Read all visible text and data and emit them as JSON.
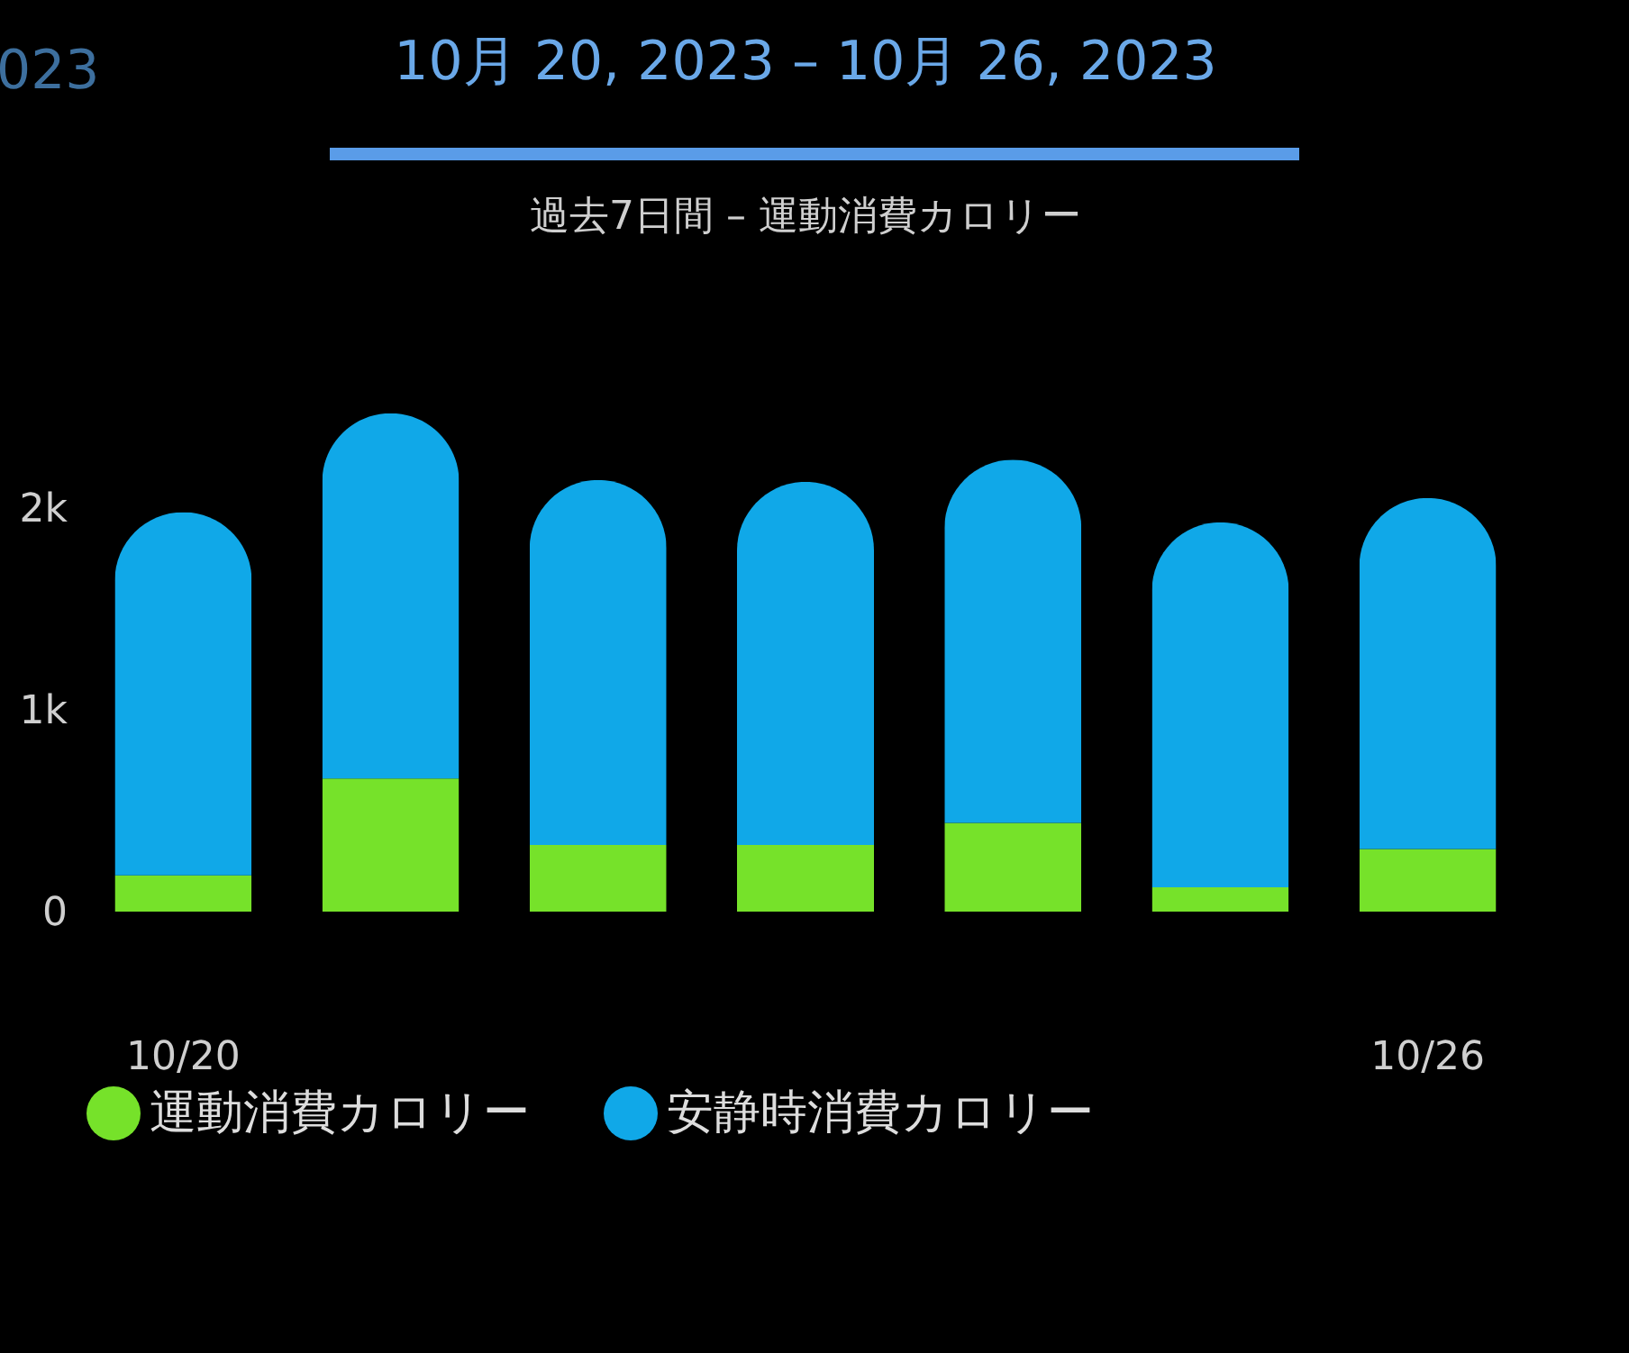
{
  "chart_data": {
    "type": "bar",
    "title": "10月 20, 2023 – 10月 26, 2023",
    "subtitle": "過去7日間 – 運動消費カロリー",
    "annotations": [
      "023"
    ],
    "categories": [
      "10/20",
      null,
      null,
      null,
      null,
      null,
      "10/26"
    ],
    "stacked": true,
    "series": [
      {
        "name": "運動消費カロリー",
        "color": "#76e22a",
        "values": [
          180,
          660,
          330,
          330,
          440,
          120,
          310
        ]
      },
      {
        "name": "安静時消費カロリー",
        "color": "#10a8e8",
        "values": [
          1800,
          1810,
          1810,
          1800,
          1800,
          1810,
          1740
        ]
      }
    ],
    "ylim": [
      0,
      2500
    ],
    "yticks": [
      0,
      {
        "value": 1000,
        "label": "1k"
      },
      {
        "value": 2000,
        "label": "2k"
      }
    ],
    "grid": false,
    "legend": "bottom"
  }
}
